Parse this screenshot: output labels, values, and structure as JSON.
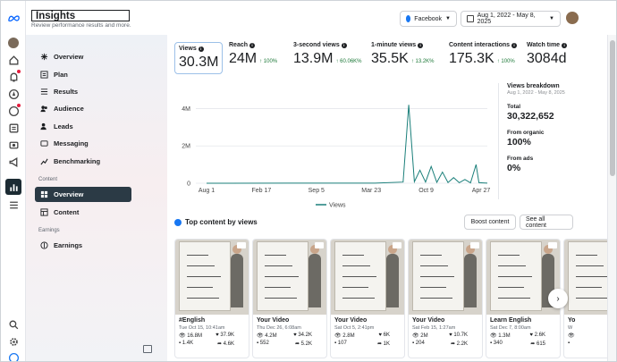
{
  "header": {
    "title": "Insights",
    "subtitle": "Review performance results and more."
  },
  "platform_select": {
    "label": "Facebook"
  },
  "date_range": {
    "label": "Aug 1, 2022 - May 8, 2025"
  },
  "sidebar": {
    "items": [
      {
        "label": "Overview",
        "icon": "overview-icon"
      },
      {
        "label": "Plan",
        "icon": "plan-icon"
      },
      {
        "label": "Results",
        "icon": "results-icon"
      },
      {
        "label": "Audience",
        "icon": "audience-icon"
      },
      {
        "label": "Leads",
        "icon": "leads-icon"
      },
      {
        "label": "Messaging",
        "icon": "messaging-icon"
      },
      {
        "label": "Benchmarking",
        "icon": "benchmarking-icon"
      }
    ],
    "content_section": "Content",
    "content_items": [
      {
        "label": "Overview",
        "icon": "overview-icon",
        "selected": true
      },
      {
        "label": "Content",
        "icon": "content-icon"
      }
    ],
    "earnings_section": "Earnings",
    "earnings_items": [
      {
        "label": "Earnings",
        "icon": "earnings-icon"
      }
    ]
  },
  "metrics": [
    {
      "label": "Views",
      "value": "30.3M",
      "change": ""
    },
    {
      "label": "Reach",
      "value": "24M",
      "change": "100%"
    },
    {
      "label": "3-second views",
      "value": "13.9M",
      "change": "60.06K%"
    },
    {
      "label": "1-minute views",
      "value": "35.5K",
      "change": "13.2K%"
    },
    {
      "label": "Content interactions",
      "value": "175.3K",
      "change": "100%"
    },
    {
      "label": "Watch time",
      "value": "3084d",
      "change": ""
    }
  ],
  "chart_data": {
    "type": "line",
    "title": "",
    "series": [
      {
        "name": "Views",
        "color": "#1a7f7a"
      }
    ],
    "x_ticks": [
      "Aug 1",
      "Feb 17",
      "Sep 5",
      "Mar 23",
      "Oct 9",
      "Apr 27"
    ],
    "y_ticks": [
      "0",
      "2M",
      "4M"
    ],
    "ylim": [
      0,
      4500000
    ],
    "points": [
      [
        0,
        2000
      ],
      [
        0.3,
        3000
      ],
      [
        0.6,
        4000
      ],
      [
        0.7,
        60000
      ],
      [
        0.72,
        4200000
      ],
      [
        0.74,
        80000
      ],
      [
        0.76,
        700000
      ],
      [
        0.78,
        60000
      ],
      [
        0.8,
        900000
      ],
      [
        0.82,
        50000
      ],
      [
        0.84,
        600000
      ],
      [
        0.86,
        40000
      ],
      [
        0.88,
        300000
      ],
      [
        0.9,
        30000
      ],
      [
        0.92,
        200000
      ],
      [
        0.94,
        20000
      ],
      [
        0.96,
        1000000
      ],
      [
        0.97,
        30000
      ],
      [
        1,
        5000
      ]
    ]
  },
  "breakdown": {
    "title": "Views breakdown",
    "date": "Aug 1, 2022 - May 8, 2025",
    "total_label": "Total",
    "total_value": "30,322,652",
    "organic_label": "From organic",
    "organic_value": "100%",
    "ads_label": "From ads",
    "ads_value": "0%"
  },
  "top_content": {
    "title": "Top content by views",
    "boost_label": "Boost content",
    "see_all_label": "See all content",
    "cards": [
      {
        "title": "#English",
        "date": "Tue Oct 15, 10:41am",
        "views": "16.8M",
        "likes": "37.9K",
        "comments": "1.4K",
        "shares": "4.6K"
      },
      {
        "title": "Your Video",
        "date": "Thu Dec 26, 6:08am",
        "views": "4.2M",
        "likes": "34.2K",
        "comments": "552",
        "shares": "5.2K"
      },
      {
        "title": "Your Video",
        "date": "Sat Oct 5, 2:41pm",
        "views": "2.8M",
        "likes": "6K",
        "comments": "107",
        "shares": "1K"
      },
      {
        "title": "Your Video",
        "date": "Sat Feb 15, 1:27am",
        "views": "2M",
        "likes": "10.7K",
        "comments": "204",
        "shares": "2.2K"
      },
      {
        "title": "Learn English",
        "date": "Sat Dec 7, 8:00am",
        "views": "1.3M",
        "likes": "2.6K",
        "comments": "340",
        "shares": "615"
      },
      {
        "title": "Yo",
        "date": "W",
        "views": "",
        "likes": "",
        "comments": "",
        "shares": ""
      }
    ]
  }
}
